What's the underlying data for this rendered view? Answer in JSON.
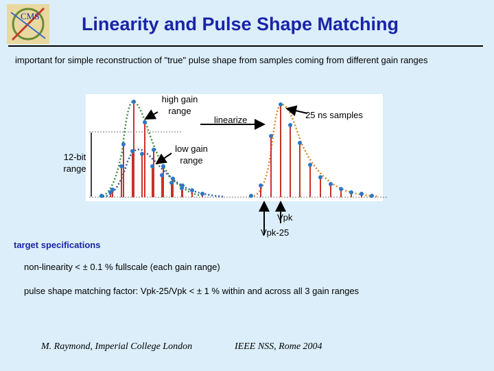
{
  "header": {
    "title": "Linearity and Pulse Shape Matching",
    "subtitle": "important for simple reconstruction of \"true\" pulse shape from samples coming from different gain ranges",
    "logo_text": "CMS"
  },
  "figure": {
    "labels": {
      "high_gain": [
        "high gain",
        "range"
      ],
      "low_gain": [
        "low gain",
        "range"
      ],
      "bit_range": [
        "12-bit",
        "range"
      ],
      "linearize": "linearize",
      "samples": "25 ns samples",
      "vpk": "Vpk",
      "vpk25": "Vpk-25"
    },
    "colors": {
      "panel": "#ffffff",
      "sample_line": "#c8322a",
      "sample_dot": "#2a78c8",
      "high_gain_curve": "#3c8c3c",
      "low_gain_curve": "#2a5aa0",
      "linearized_curve": "#d2872a"
    }
  },
  "specs": {
    "title": "target specifications",
    "items": [
      "non-linearity < ± 0.1 % fullscale (each gain range)",
      "pulse shape matching factor: Vpk-25/Vpk < ± 1 %   within and across all 3 gain ranges"
    ]
  },
  "footer": {
    "author": "M. Raymond, Imperial College London",
    "conference": "IEEE NSS, Rome 2004"
  }
}
